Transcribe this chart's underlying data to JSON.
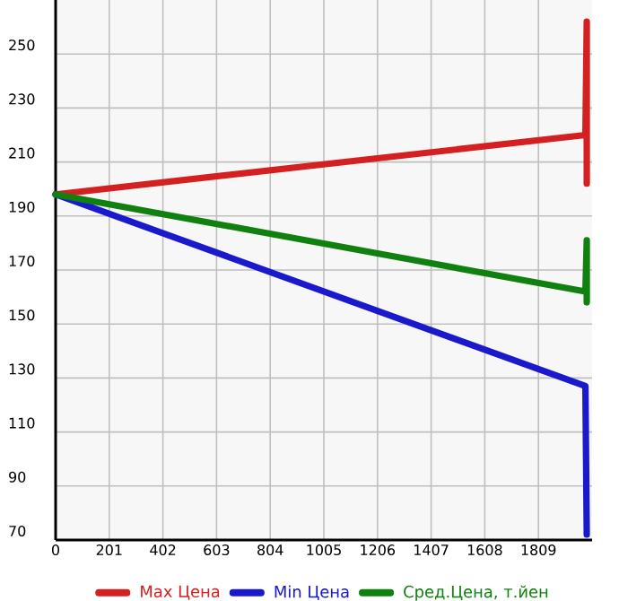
{
  "chart_data": {
    "type": "line",
    "xlim": [
      0,
      2010
    ],
    "ylim": [
      70,
      270
    ],
    "xticks": [
      0,
      201,
      402,
      603,
      804,
      1005,
      1206,
      1407,
      1608,
      1809
    ],
    "yticks": [
      70,
      90,
      110,
      130,
      150,
      170,
      190,
      210,
      230,
      250
    ],
    "grid": true,
    "legend": "bottom",
    "series": [
      {
        "name": "Max Цена",
        "color": "#d42020",
        "x": [
          0,
          1985,
          1990,
          1990
        ],
        "values": [
          198,
          220,
          262,
          202
        ]
      },
      {
        "name": "Min Цена",
        "color": "#1a1acc",
        "x": [
          0,
          1985,
          1990
        ],
        "values": [
          198,
          127,
          72
        ]
      },
      {
        "name": "Сред.Цена, т.йен",
        "color": "#108010",
        "x": [
          0,
          1985,
          1990,
          1990
        ],
        "values": [
          198,
          162,
          181,
          158
        ]
      }
    ]
  }
}
